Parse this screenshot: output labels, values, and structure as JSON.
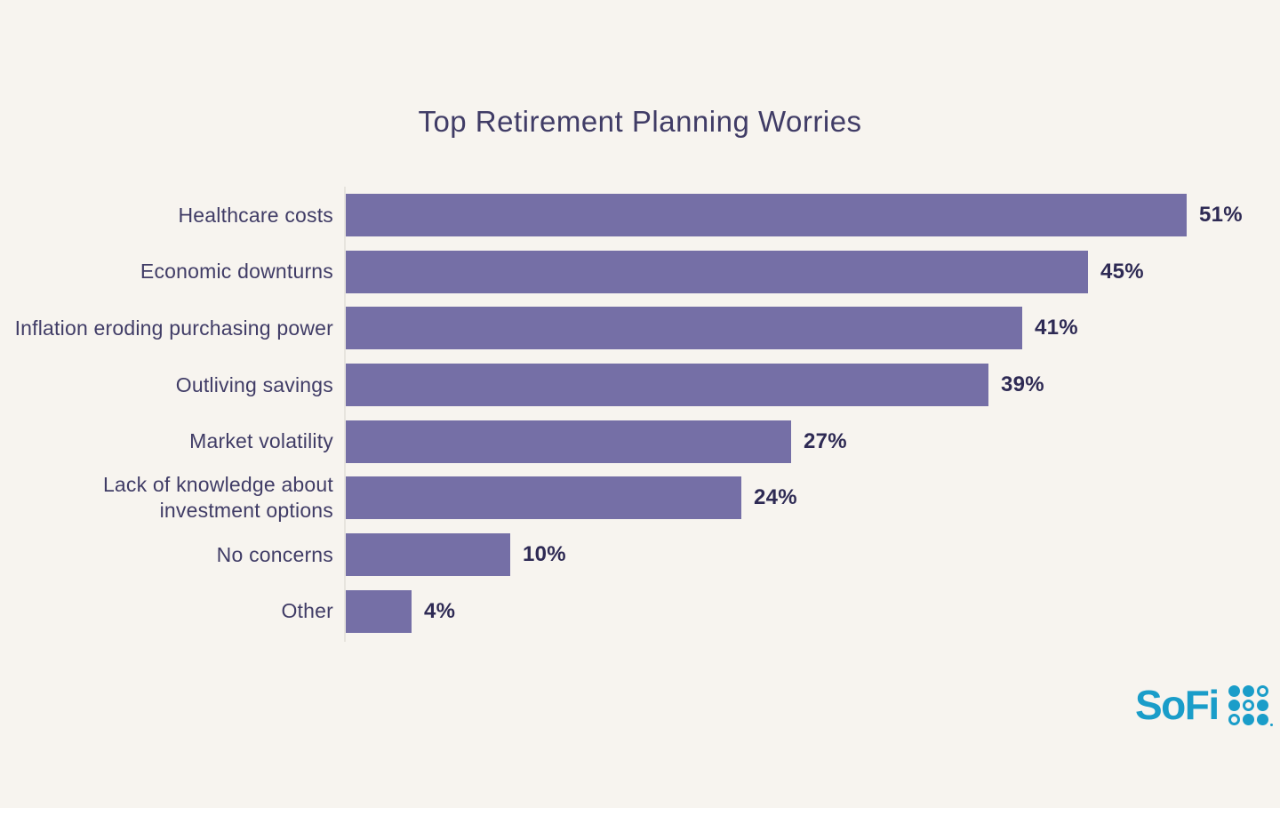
{
  "chart_data": {
    "type": "bar",
    "orientation": "horizontal",
    "title": "Top Retirement Planning Worries",
    "categories": [
      "Healthcare costs",
      "Economic downturns",
      "Inflation eroding purchasing power",
      "Outliving savings",
      "Market volatility",
      "Lack of knowledge about investment options",
      "No concerns",
      "Other"
    ],
    "values": [
      51,
      45,
      41,
      39,
      27,
      24,
      10,
      4
    ],
    "value_labels": [
      "51%",
      "45%",
      "41%",
      "39%",
      "27%",
      "24%",
      "10%",
      "4%"
    ],
    "xlabel": "",
    "ylabel": "",
    "xlim": [
      0,
      57
    ],
    "grid": false,
    "legend_position": "none",
    "bar_color": "#756fa6",
    "category_label_color": "#403c66",
    "value_label_color": "#2e2a54",
    "title_color": "#403c66",
    "background_color": "#f7f4ef"
  },
  "branding": {
    "logo_text": "SoFi",
    "logo_color": "#1a9dc9",
    "logo_dot_pattern": [
      [
        "filled",
        "filled",
        "outline"
      ],
      [
        "filled",
        "outline",
        "filled"
      ],
      [
        "outline",
        "filled",
        "filled"
      ]
    ]
  }
}
